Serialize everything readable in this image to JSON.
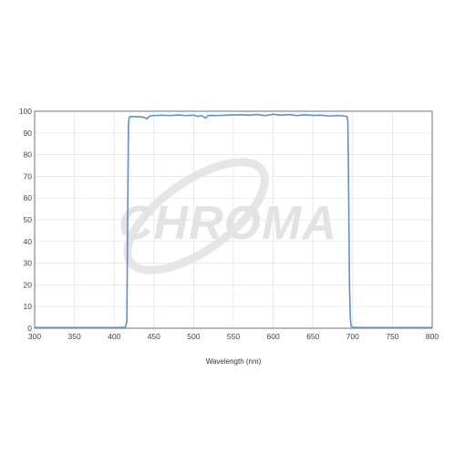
{
  "watermark": {
    "text": "CHROMA",
    "color": "#e3e3e3"
  },
  "chart_data": {
    "type": "line",
    "title": "",
    "xlabel": "Wavelength (nm)",
    "ylabel": "",
    "xlim": [
      300,
      800
    ],
    "ylim": [
      0,
      100
    ],
    "x_ticks": [
      300,
      350,
      400,
      450,
      500,
      550,
      600,
      650,
      700,
      750,
      800
    ],
    "y_ticks": [
      0,
      10,
      20,
      30,
      40,
      50,
      60,
      70,
      80,
      90,
      100
    ],
    "grid": true,
    "legend": "none",
    "line_color": "#5b8fd6",
    "series": [
      {
        "x": [
          300,
          350,
          400,
          414,
          416,
          417,
          418,
          419,
          420,
          430,
          437,
          441,
          445,
          450,
          460,
          470,
          480,
          490,
          500,
          505,
          510,
          515,
          518,
          522,
          530,
          540,
          550,
          560,
          570,
          580,
          590,
          600,
          610,
          620,
          630,
          640,
          650,
          660,
          670,
          680,
          690,
          693,
          694,
          695,
          696,
          697,
          698,
          700,
          720,
          750,
          800
        ],
        "y": [
          0.3,
          0.3,
          0.3,
          0.4,
          3,
          50,
          94,
          97.2,
          97.5,
          97.5,
          97.3,
          96.5,
          97.8,
          98,
          98.2,
          98,
          98.3,
          98,
          98.2,
          97.6,
          98,
          96.8,
          98,
          98.1,
          98,
          98.2,
          98.3,
          98.4,
          98.2,
          98.5,
          98,
          98.6,
          98.2,
          98.5,
          98,
          98.4,
          98.1,
          98.2,
          97.8,
          98,
          97.8,
          97.5,
          95,
          60,
          20,
          5,
          1,
          0.4,
          0.3,
          0.3,
          0.3
        ]
      }
    ]
  }
}
